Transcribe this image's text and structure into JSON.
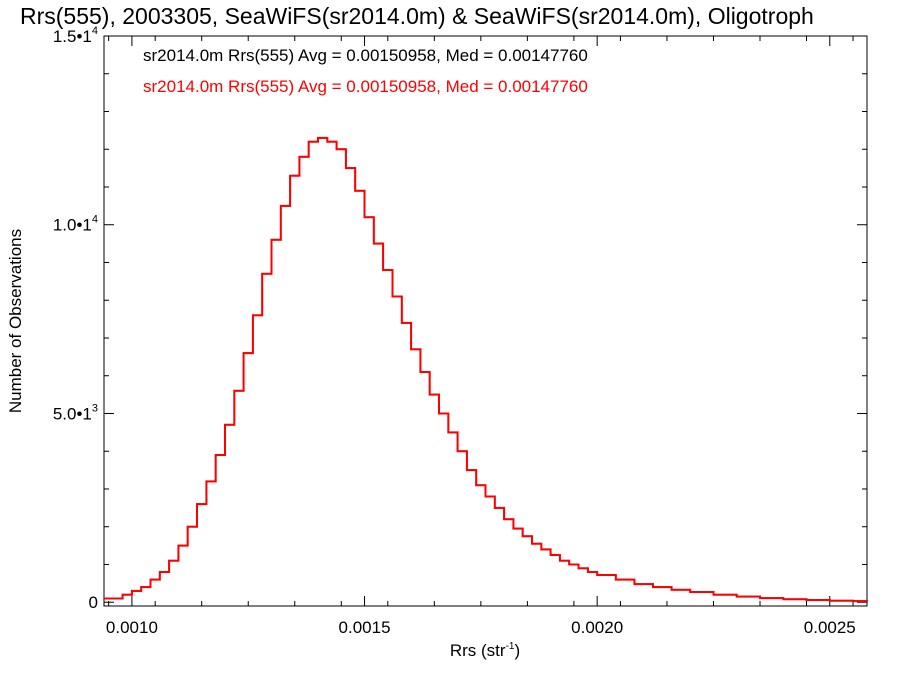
{
  "chart_data": {
    "type": "line",
    "title": "Rrs(555), 2003305, SeaWiFS(sr2014.0m) & SeaWiFS(sr2014.0m), Oligotroph",
    "xlabel": "Rrs (str",
    "xlabel_sup": "-1",
    "xlabel_close": ")",
    "ylabel": "Number of Observations",
    "xlim": [
      0.00094,
      0.00258
    ],
    "ylim": [
      -100,
      15000
    ],
    "x_ticks": [
      {
        "value": 0.001,
        "label": "0.0010"
      },
      {
        "value": 0.0015,
        "label": "0.0015"
      },
      {
        "value": 0.002,
        "label": "0.0020"
      },
      {
        "value": 0.0025,
        "label": "0.0025"
      }
    ],
    "y_ticks": [
      {
        "value": 0,
        "base": "0",
        "exp": ""
      },
      {
        "value": 5000,
        "base": "5.0•1",
        "exp": "3"
      },
      {
        "value": 10000,
        "base": "1.0•1",
        "exp": "4"
      },
      {
        "value": 15000,
        "base": "1.5•1",
        "exp": "4"
      }
    ],
    "legend": [
      {
        "text": "sr2014.0m Rrs(555) Avg = 0.00150958, Med = 0.00147760",
        "color": "#000000"
      },
      {
        "text": "sr2014.0m Rrs(555) Avg = 0.00150958, Med = 0.00147760",
        "color": "#ff0000"
      }
    ],
    "legend_placement": "top-left",
    "series": [
      {
        "color": "#000000",
        "x": [
          0.00094,
          0.00098,
          0.001,
          0.00102,
          0.00104,
          0.00106,
          0.00108,
          0.0011,
          0.00112,
          0.00114,
          0.00116,
          0.00118,
          0.0012,
          0.00122,
          0.00124,
          0.00126,
          0.00128,
          0.0013,
          0.00132,
          0.00134,
          0.00136,
          0.00138,
          0.0014,
          0.00142,
          0.00144,
          0.00146,
          0.00148,
          0.0015,
          0.00152,
          0.00154,
          0.00156,
          0.00158,
          0.0016,
          0.00162,
          0.00164,
          0.00166,
          0.00168,
          0.0017,
          0.00172,
          0.00174,
          0.00176,
          0.00178,
          0.0018,
          0.00182,
          0.00184,
          0.00186,
          0.00188,
          0.0019,
          0.00192,
          0.00194,
          0.00196,
          0.00198,
          0.002,
          0.00204,
          0.00208,
          0.00212,
          0.00216,
          0.0022,
          0.00225,
          0.0023,
          0.00235,
          0.0024,
          0.00245,
          0.0025,
          0.00255,
          0.00258
        ],
        "y": [
          100,
          200,
          300,
          400,
          600,
          800,
          1100,
          1500,
          2000,
          2600,
          3200,
          3900,
          4700,
          5600,
          6600,
          7600,
          8700,
          9600,
          10500,
          11300,
          11800,
          12200,
          12300,
          12200,
          12000,
          11500,
          10900,
          10200,
          9500,
          8800,
          8100,
          7400,
          6700,
          6100,
          5500,
          5000,
          4500,
          4000,
          3500,
          3100,
          2800,
          2500,
          2200,
          1950,
          1750,
          1550,
          1400,
          1250,
          1100,
          1000,
          900,
          800,
          720,
          600,
          480,
          400,
          330,
          270,
          200,
          150,
          110,
          80,
          60,
          40,
          30,
          20
        ]
      },
      {
        "color": "#ff0000",
        "x": [
          0.00094,
          0.00098,
          0.001,
          0.00102,
          0.00104,
          0.00106,
          0.00108,
          0.0011,
          0.00112,
          0.00114,
          0.00116,
          0.00118,
          0.0012,
          0.00122,
          0.00124,
          0.00126,
          0.00128,
          0.0013,
          0.00132,
          0.00134,
          0.00136,
          0.00138,
          0.0014,
          0.00142,
          0.00144,
          0.00146,
          0.00148,
          0.0015,
          0.00152,
          0.00154,
          0.00156,
          0.00158,
          0.0016,
          0.00162,
          0.00164,
          0.00166,
          0.00168,
          0.0017,
          0.00172,
          0.00174,
          0.00176,
          0.00178,
          0.0018,
          0.00182,
          0.00184,
          0.00186,
          0.00188,
          0.0019,
          0.00192,
          0.00194,
          0.00196,
          0.00198,
          0.002,
          0.00204,
          0.00208,
          0.00212,
          0.00216,
          0.0022,
          0.00225,
          0.0023,
          0.00235,
          0.0024,
          0.00245,
          0.0025,
          0.00255,
          0.00258
        ],
        "y": [
          100,
          200,
          300,
          400,
          600,
          800,
          1100,
          1500,
          2000,
          2600,
          3200,
          3900,
          4700,
          5600,
          6600,
          7600,
          8700,
          9600,
          10500,
          11300,
          11800,
          12200,
          12300,
          12200,
          12000,
          11500,
          10900,
          10200,
          9500,
          8800,
          8100,
          7400,
          6700,
          6100,
          5500,
          5000,
          4500,
          4000,
          3500,
          3100,
          2800,
          2500,
          2200,
          1950,
          1750,
          1550,
          1400,
          1250,
          1100,
          1000,
          900,
          800,
          720,
          600,
          480,
          400,
          330,
          270,
          200,
          150,
          110,
          80,
          60,
          40,
          30,
          20
        ]
      }
    ],
    "grid": false
  }
}
